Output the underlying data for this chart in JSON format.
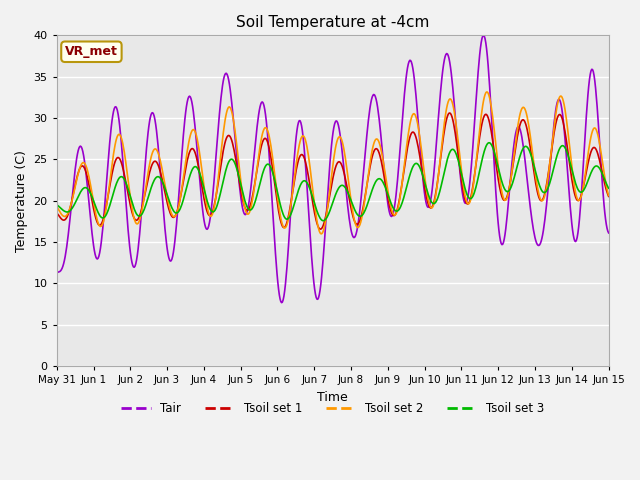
{
  "title": "Soil Temperature at -4cm",
  "xlabel": "Time",
  "ylabel": "Temperature (C)",
  "ylim": [
    0,
    40
  ],
  "yticks": [
    0,
    5,
    10,
    15,
    20,
    25,
    30,
    35,
    40
  ],
  "annotation_label": "VR_met",
  "annotation_color": "#8B0000",
  "annotation_bg": "#FFFFF0",
  "plot_bg_color": "#E8E8E8",
  "fig_bg_color": "#F2F2F2",
  "legend_entries": [
    "Tair",
    "Tsoil set 1",
    "Tsoil set 2",
    "Tsoil set 3"
  ],
  "line_colors": [
    "#9900CC",
    "#CC0000",
    "#FF9900",
    "#00BB00"
  ],
  "n_points": 720,
  "x_start": 0,
  "x_end": 15,
  "xtick_positions": [
    0,
    1,
    2,
    3,
    4,
    5,
    6,
    7,
    8,
    9,
    10,
    11,
    12,
    13,
    14,
    15
  ],
  "xtick_labels": [
    "May 31",
    "Jun 1",
    "Jun 2",
    "Jun 3",
    "Jun 4",
    "Jun 5",
    "Jun 6",
    "Jun 7",
    "Jun 8",
    "Jun 9",
    "Jun 10",
    "Jun 11",
    "Jun 12",
    "Jun 13",
    "Jun 14",
    "Jun 15"
  ]
}
